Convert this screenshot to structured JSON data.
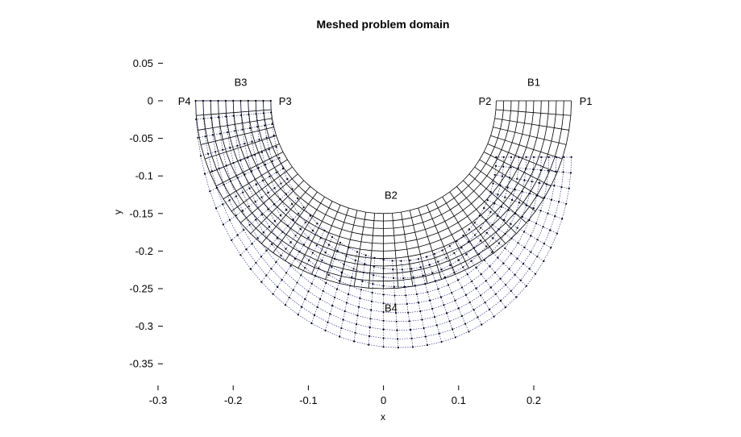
{
  "chart_data": {
    "type": "scatter",
    "title": "Meshed problem domain",
    "xlabel": "x",
    "ylabel": "y",
    "xlim": [
      -0.3,
      0.25
    ],
    "ylim": [
      -0.37,
      0.055
    ],
    "x_ticks": [
      -0.3,
      -0.2,
      -0.1,
      0,
      0.1,
      0.2
    ],
    "y_ticks": [
      0.05,
      0,
      -0.05,
      -0.1,
      -0.15,
      -0.2,
      -0.25,
      -0.3,
      -0.35
    ],
    "x_tick_labels": [
      "-0.3",
      "-0.2",
      "-0.1",
      "0",
      "0.1",
      "0.2"
    ],
    "y_tick_labels": [
      "0.05",
      "0",
      "-0.05",
      "-0.1",
      "-0.15",
      "-0.2",
      "-0.25",
      "-0.3",
      "-0.35"
    ],
    "grid": false,
    "mesh": {
      "inner_radius": 0.15,
      "outer_radius": 0.25,
      "radial_divisions": 10,
      "angular_divisions": 40,
      "color": "#000000"
    },
    "deformed_mesh": {
      "inner_radius": 0.15,
      "outer_radius": 0.25,
      "radial_divisions": 10,
      "angular_divisions": 40,
      "dy_at_left": 0,
      "dy_at_right": -0.075,
      "dy_radial_bottom": -0.04,
      "node_color": "#000000",
      "line_color": "#1a1a8c"
    },
    "annotations": [
      {
        "text": "P1",
        "x": 0.25,
        "y": 0,
        "anchor": "start"
      },
      {
        "text": "P2",
        "x": 0.15,
        "y": 0,
        "anchor": "end"
      },
      {
        "text": "P3",
        "x": -0.15,
        "y": 0,
        "anchor": "start"
      },
      {
        "text": "P4",
        "x": -0.25,
        "y": 0,
        "anchor": "end"
      },
      {
        "text": "B1",
        "x": 0.2,
        "y": 0.025,
        "anchor": "middle"
      },
      {
        "text": "B2",
        "x": 0.01,
        "y": -0.125,
        "anchor": "middle"
      },
      {
        "text": "B3",
        "x": -0.19,
        "y": 0.025,
        "anchor": "middle"
      },
      {
        "text": "B4",
        "x": 0.01,
        "y": -0.275,
        "anchor": "middle"
      }
    ]
  }
}
